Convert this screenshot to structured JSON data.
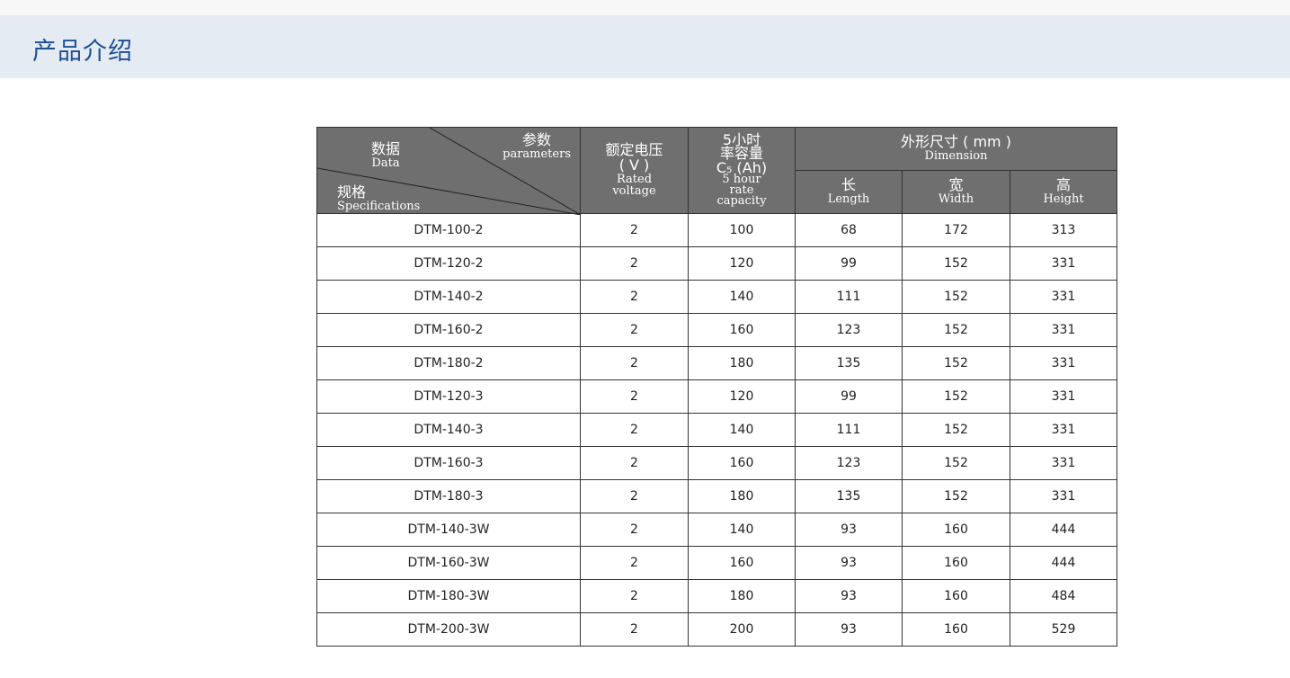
{
  "header": {
    "title": "产品介绍"
  },
  "table": {
    "corner": {
      "param_cn": "参数",
      "param_en": "parameters",
      "data_cn": "数据",
      "data_en": "Data",
      "spec_cn": "规格",
      "spec_en": "Specifications"
    },
    "voltage": {
      "cn": "额定电压",
      "unit": "( V )",
      "en1": "Rated",
      "en2": "voltage"
    },
    "capacity": {
      "cn1": "5小时",
      "cn2": "率容量",
      "unit": "C₅ (Ah)",
      "en1": "5 hour",
      "en2": "rate",
      "en3": "capacity"
    },
    "dimension": {
      "cn": "外形尺寸 ( mm )",
      "en": "Dimension"
    },
    "length": {
      "cn": "长",
      "en": "Length"
    },
    "width": {
      "cn": "宽",
      "en": "Width"
    },
    "height": {
      "cn": "高",
      "en": "Height"
    },
    "rows": [
      [
        "DTM-100-2",
        "2",
        "100",
        "68",
        "172",
        "313"
      ],
      [
        "DTM-120-2",
        "2",
        "120",
        "99",
        "152",
        "331"
      ],
      [
        "DTM-140-2",
        "2",
        "140",
        "111",
        "152",
        "331"
      ],
      [
        "DTM-160-2",
        "2",
        "160",
        "123",
        "152",
        "331"
      ],
      [
        "DTM-180-2",
        "2",
        "180",
        "135",
        "152",
        "331"
      ],
      [
        "DTM-120-3",
        "2",
        "120",
        "99",
        "152",
        "331"
      ],
      [
        "DTM-140-3",
        "2",
        "140",
        "111",
        "152",
        "331"
      ],
      [
        "DTM-160-3",
        "2",
        "160",
        "123",
        "152",
        "331"
      ],
      [
        "DTM-180-3",
        "2",
        "180",
        "135",
        "152",
        "331"
      ],
      [
        "DTM-140-3W",
        "2",
        "140",
        "93",
        "160",
        "444"
      ],
      [
        "DTM-160-3W",
        "2",
        "160",
        "93",
        "160",
        "444"
      ],
      [
        "DTM-180-3W",
        "2",
        "180",
        "93",
        "160",
        "484"
      ],
      [
        "DTM-200-3W",
        "2",
        "200",
        "93",
        "160",
        "529"
      ]
    ]
  }
}
